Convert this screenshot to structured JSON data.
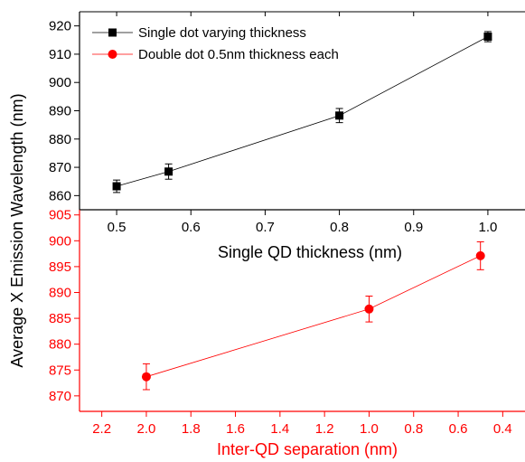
{
  "chart_data": [
    {
      "type": "line",
      "panel": "top",
      "xlabel": "Single QD  thickness (nm)",
      "ylabel": "Average X Emission Wavelength (nm)",
      "xlim": [
        0.45,
        1.05
      ],
      "ylim": [
        855,
        925
      ],
      "x_ticks": [
        0.5,
        0.6,
        0.7,
        0.8,
        0.9,
        1.0
      ],
      "x_tick_labels": [
        "0.5",
        "0.6",
        "0.7",
        "0.8",
        "0.9",
        "1.0"
      ],
      "y_ticks": [
        860,
        870,
        880,
        890,
        900,
        910,
        920
      ],
      "y_tick_labels": [
        "860",
        "870",
        "880",
        "890",
        "900",
        "910",
        "920"
      ],
      "color": "#000000",
      "marker": "square",
      "legend_position": "top-left",
      "series": [
        {
          "name": "Single dot varying thickness",
          "x": [
            0.5,
            0.57,
            0.8,
            1.0
          ],
          "y": [
            863.3,
            868.5,
            888.3,
            916.2
          ],
          "error": [
            2.2,
            2.7,
            2.5,
            1.8
          ]
        }
      ]
    },
    {
      "type": "line",
      "panel": "bottom",
      "xlabel": "Inter-QD separation (nm)",
      "xlim": [
        2.3,
        0.3
      ],
      "ylim": [
        867,
        906
      ],
      "x_ticks": [
        2.2,
        2.0,
        1.8,
        1.6,
        1.4,
        1.2,
        1.0,
        0.8,
        0.6,
        0.4
      ],
      "x_tick_labels": [
        "2.2",
        "2.0",
        "1.8",
        "1.6",
        "1.4",
        "1.2",
        "1.0",
        "0.8",
        "0.6",
        "0.4"
      ],
      "y_ticks": [
        870,
        875,
        880,
        885,
        890,
        895,
        900,
        905
      ],
      "y_tick_labels": [
        "870",
        "875",
        "880",
        "885",
        "890",
        "895",
        "900",
        "905"
      ],
      "color": "#ff0000",
      "marker": "circle",
      "series": [
        {
          "name": "Double dot 0.5nm thickness each",
          "x": [
            2.0,
            1.0,
            0.5
          ],
          "y": [
            873.7,
            886.8,
            897.1
          ],
          "error": [
            2.5,
            2.5,
            2.7
          ]
        }
      ]
    }
  ]
}
